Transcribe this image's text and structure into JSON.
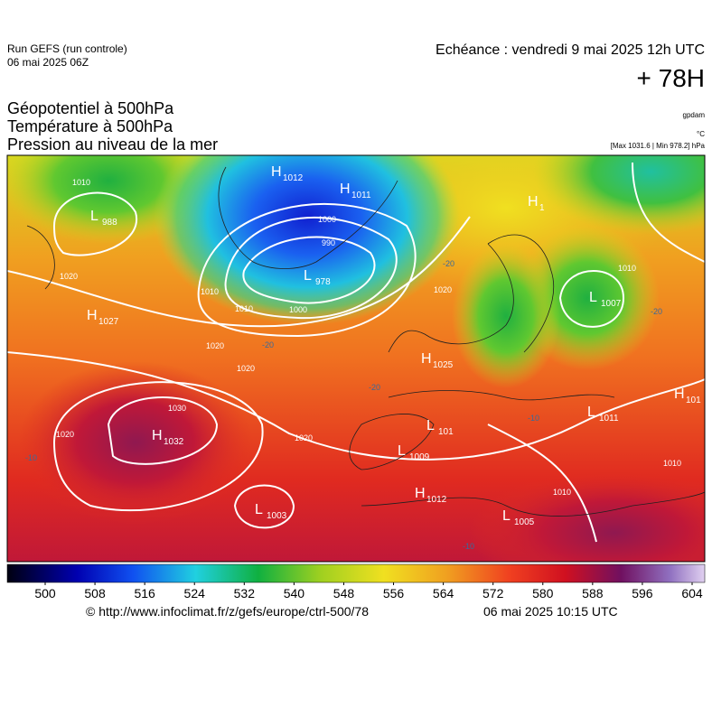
{
  "header": {
    "run": "Run GEFS (run controle)",
    "run_date": "06 mai 2025 06Z",
    "valid": "Echéance : vendredi 9 mai 2025 12h UTC",
    "lead": "+ 78H"
  },
  "titles": [
    "Géopotentiel à 500hPa",
    "Température à 500hPa",
    "Pression au niveau de la mer"
  ],
  "units": [
    "gpdam",
    "°C",
    "[Max 1031.6 | Min 978.2] hPa"
  ],
  "pressure_centers": [
    {
      "type": "H",
      "value": "1012"
    },
    {
      "type": "H",
      "value": "1011"
    },
    {
      "type": "L",
      "value": "988"
    },
    {
      "type": "L",
      "value": "978"
    },
    {
      "type": "H",
      "value": "1"
    },
    {
      "type": "L",
      "value": "1007"
    },
    {
      "type": "H",
      "value": "1027"
    },
    {
      "type": "H",
      "value": "1025"
    },
    {
      "type": "H",
      "value": "101"
    },
    {
      "type": "L",
      "value": "1011"
    },
    {
      "type": "L",
      "value": "101"
    },
    {
      "type": "H",
      "value": "1032"
    },
    {
      "type": "L",
      "value": "1009"
    },
    {
      "type": "H",
      "value": "1012"
    },
    {
      "type": "L",
      "value": "1003"
    },
    {
      "type": "L",
      "value": "1005"
    }
  ],
  "isobar_labels": [
    "1010",
    "1000",
    "990",
    "1010",
    "1010",
    "1000",
    "1020",
    "1020",
    "1020",
    "1020",
    "1030",
    "1020",
    "1010",
    "1010",
    "1010",
    "1020"
  ],
  "temperature_labels": [
    "-20",
    "-20",
    "-20",
    "-10",
    "-10",
    "-20",
    "-10"
  ],
  "colorbar": {
    "ticks": [
      500,
      508,
      516,
      524,
      532,
      540,
      548,
      556,
      564,
      572,
      580,
      588,
      596,
      604
    ]
  },
  "footer": {
    "source": "© http://www.infoclimat.fr/z/gefs/europe/ctrl-500/78",
    "generated": "06 mai 2025 10:15 UTC"
  }
}
